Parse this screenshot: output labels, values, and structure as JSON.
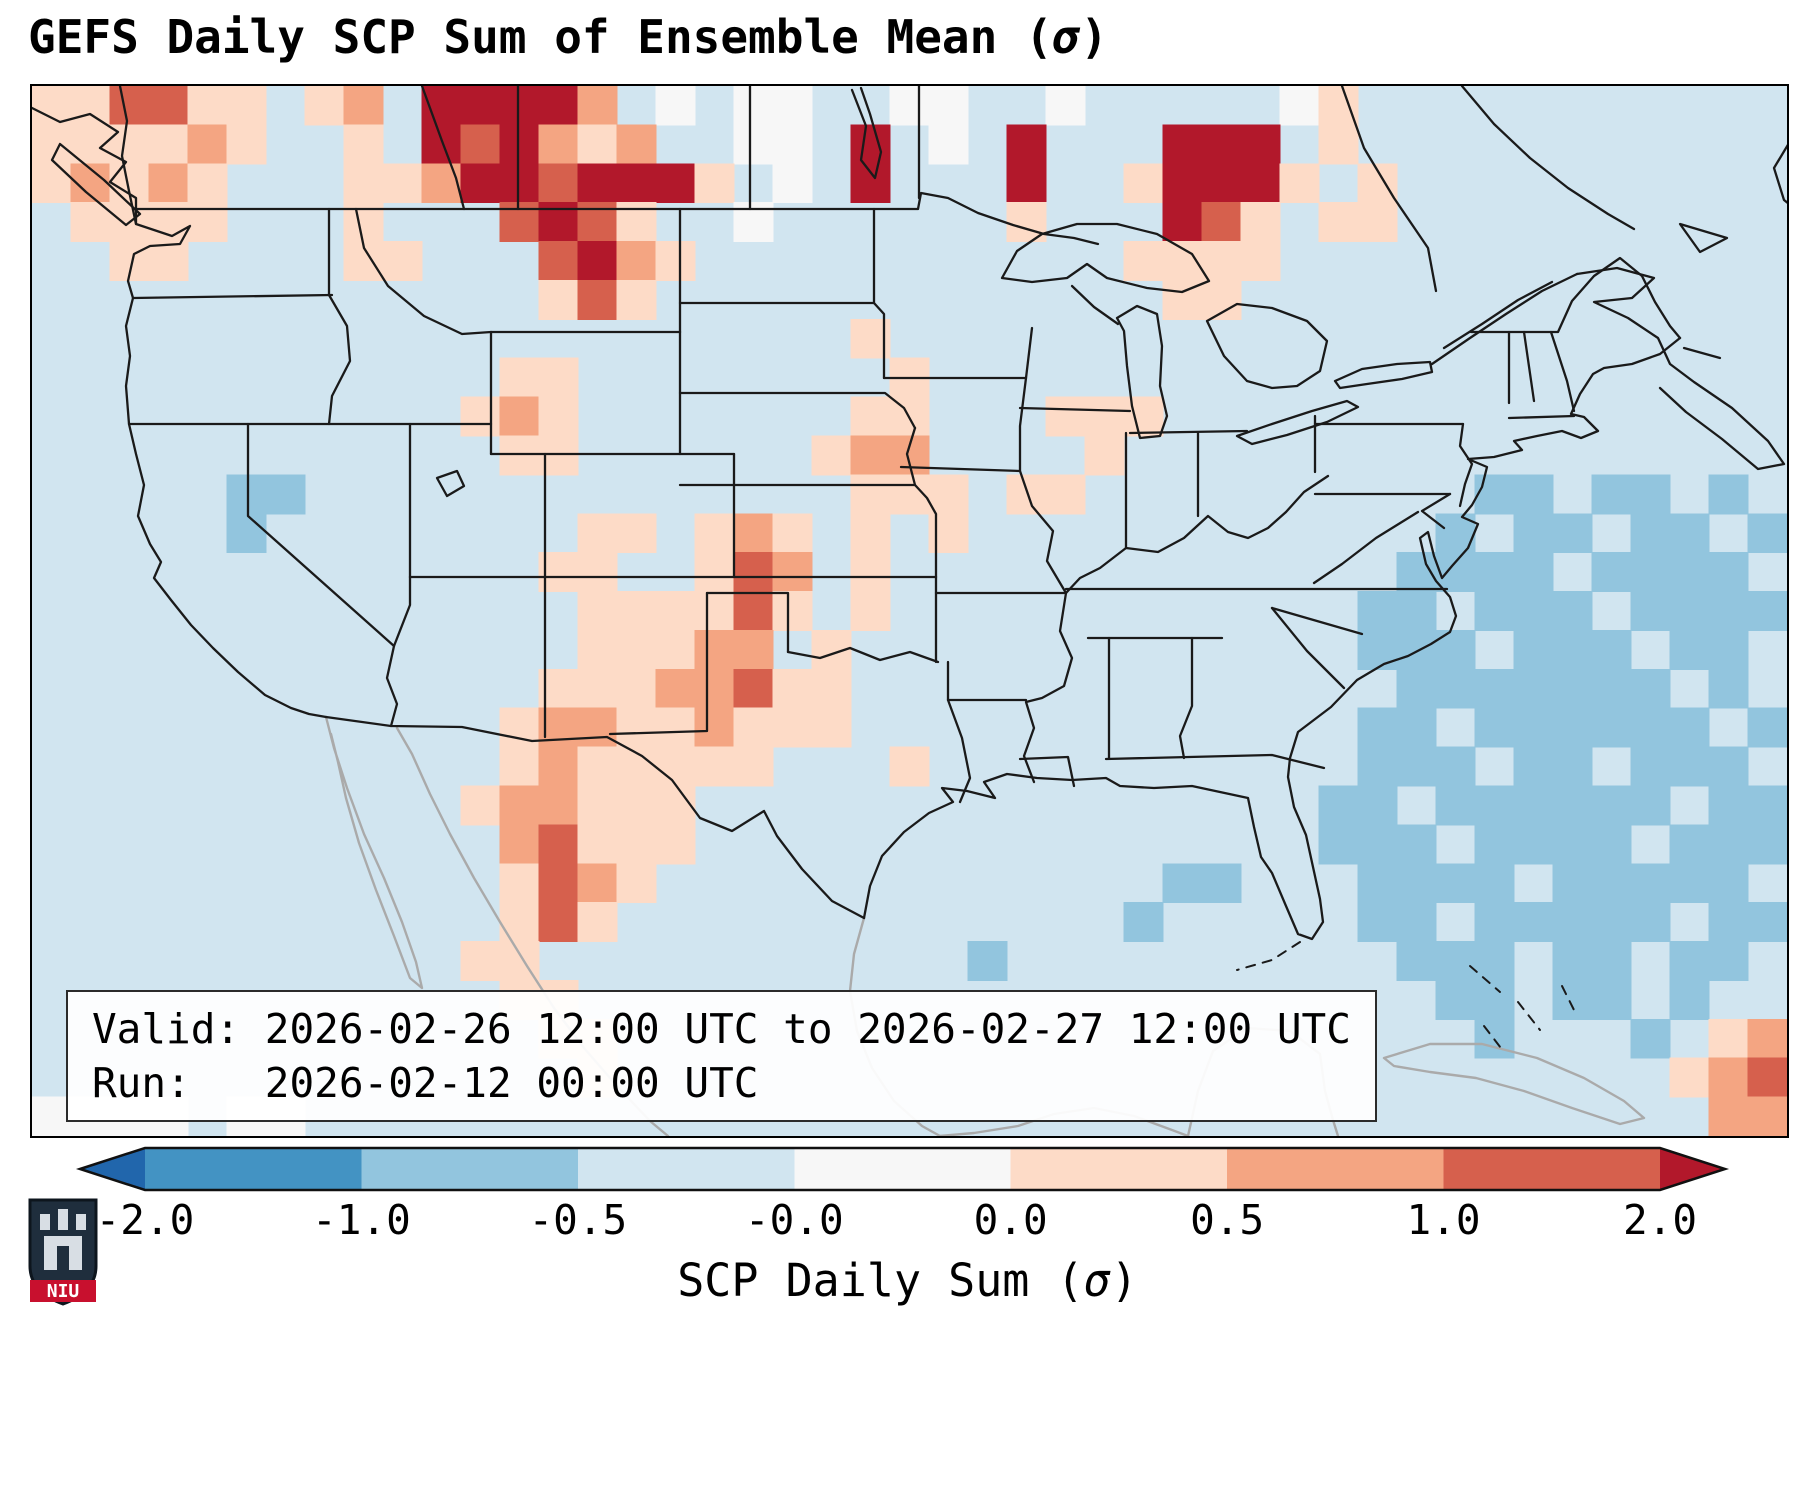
{
  "title": {
    "prefix": "GEFS Daily SCP Sum of Ensemble Mean (",
    "sigma": "σ",
    "suffix": ")"
  },
  "info_box": {
    "line_valid": "Valid: 2026-02-26 12:00 UTC to 2026-02-27 12:00 UTC",
    "line_run": "Run:   2026-02-12 00:00 UTC"
  },
  "colorbar": {
    "label_prefix": "SCP Daily Sum (",
    "label_sigma": "σ",
    "label_suffix": ")",
    "ticks": [
      "-2.0",
      "-1.0",
      "-0.5",
      "-0.0",
      "0.0",
      "0.5",
      "1.0",
      "2.0"
    ],
    "segment_colors": [
      "#4393c3",
      "#92c5de",
      "#d1e5f0",
      "#f7f7f7",
      "#fddbc7",
      "#f4a582",
      "#d6604d"
    ],
    "under_color": "#2166ac",
    "over_color": "#b2182b",
    "outline_color": "#111111"
  },
  "logo": {
    "text": "NIU",
    "shield_color": "#1f2e3d",
    "band_color": "#c8102e"
  },
  "chart_data": {
    "type": "heatmap",
    "title": "GEFS Daily SCP Sum of Ensemble Mean (σ)",
    "valid_window": "2026-02-26 12:00 UTC to 2026-02-27 12:00 UTC",
    "run_time": "2026-02-12 00:00 UTC",
    "colorbar_label": "SCP Daily Sum (σ)",
    "colorbar_boundaries": [
      -2.0,
      -1.0,
      -0.5,
      -0.0,
      0.0,
      0.5,
      1.0,
      2.0
    ],
    "region": "CONUS with southern Canada, Mexico, Gulf of Mexico and western Atlantic",
    "grid": {
      "cols": 45,
      "rows_count": 27,
      "cell_bins": {
        ".": "-0.5 to -0.0 sigma (pale blue background)",
        "b": "-1.0 to -0.5 sigma",
        "B": "-2.0 to -1.0 sigma",
        "w": "-0.0 to 0.0 sigma (near zero, white)",
        "1": "0.0 to 0.5 sigma",
        "2": "0.5 to 1.0 sigma",
        "3": "1.0 to 2.0 sigma",
        "4": "greater than 2.0 sigma"
      },
      "cell_colors": {
        ".": "#d1e5f0",
        "b": "#92c5de",
        "B": "#4393c3",
        "w": "#f7f7f7",
        "1": "#fddbc7",
        "2": "#f4a582",
        "3": "#d6604d",
        "4": "#b2182b"
      },
      "rows": [
        [
          "11331",
          "1.12.",
          "44442",
          ".w.ww",
          "..ww.",
          ".w...",
          "..w1.",
          ".....",
          "....."
        ],
        [
          "11112",
          "1..1.",
          "43421",
          "2..ww",
          ".4.w.",
          "4...4",
          "44.1.",
          ".....",
          "....."
        ],
        [
          "12121",
          "...11",
          "24434",
          "441.w",
          ".4...",
          "4..14",
          "441.1",
          ".....",
          "....."
        ],
        [
          ".1111",
          "...1.",
          "..343",
          "1..w.",
          ".....",
          "1...4",
          "31.11",
          ".....",
          "....."
        ],
        [
          "..11.",
          "...11",
          "...34",
          "21...",
          ".....",
          "...11",
          "11...",
          ".....",
          "....."
        ],
        [
          ".....",
          ".....",
          "...13",
          "1....",
          ".....",
          "....1",
          "1....",
          ".....",
          "....."
        ],
        [
          ".....",
          ".....",
          ".....",
          ".....",
          ".1...",
          ".....",
          ".....",
          ".....",
          "....."
        ],
        [
          ".....",
          ".....",
          "..11.",
          ".....",
          "..1..",
          ".....",
          ".....",
          ".....",
          "....."
        ],
        [
          ".....",
          ".....",
          ".121.",
          ".....",
          ".11..",
          ".111.",
          ".....",
          ".....",
          "....."
        ],
        [
          ".....",
          ".....",
          "..11.",
          ".....",
          "122..",
          "..1..",
          ".....",
          ".....",
          "....."
        ],
        [
          ".....",
          "bb...",
          ".....",
          ".....",
          ".111.",
          "11...",
          ".....",
          "..bb.",
          "bb.b."
        ],
        [
          ".....",
          "b....",
          "....1",
          "1.121",
          ".1.1.",
          ".....",
          ".....",
          ".b.bb",
          ".bb.b"
        ],
        [
          ".....",
          ".....",
          "...11",
          "..132",
          ".1...",
          ".....",
          ".....",
          "bbbb.",
          "bbbb."
        ],
        [
          ".....",
          ".....",
          "....1",
          "11131",
          ".1...",
          ".....",
          "....b",
          "b.bbb",
          ".bbbb"
        ],
        [
          ".....",
          ".....",
          "....1",
          "1122.",
          "1....",
          ".....",
          "....b",
          "bb.bb",
          "b.bb."
        ],
        [
          ".....",
          ".....",
          "...11",
          "12231",
          "1....",
          ".....",
          ".....",
          "bbbbb",
          "bb.b."
        ],
        [
          ".....",
          ".....",
          "..122",
          "11211",
          "1....",
          ".....",
          "....b",
          "b.bbb",
          "bbb.b"
        ],
        [
          ".....",
          ".....",
          "..121",
          "1111.",
          "..1..",
          ".....",
          "....b",
          "bb.bb",
          ".bbb."
        ],
        [
          ".....",
          ".....",
          ".1221",
          "11...",
          ".....",
          ".....",
          "...bb",
          ".bbbb",
          "bb.bb"
        ],
        [
          ".....",
          ".....",
          "..231",
          "11...",
          ".....",
          ".....",
          "...bb",
          "b.bbb",
          "b.bbb"
        ],
        [
          ".....",
          ".....",
          "..132",
          "1....",
          ".....",
          "....b",
          "b...b",
          "bbb.b",
          "bbbb."
        ],
        [
          ".....",
          ".....",
          "..131",
          ".....",
          ".....",
          "...b.",
          "....b",
          "b.bbb",
          "bb.bb"
        ],
        [
          ".....",
          ".....",
          ".11..",
          ".....",
          "....b",
          ".....",
          ".....",
          "bbb.b",
          "b.bb."
        ],
        [
          ".....",
          ".....",
          "..11.",
          ".....",
          ".....",
          ".....",
          ".....",
          ".bb.b",
          "b.b.."
        ],
        [
          ".....",
          ".....",
          "...11",
          ".....",
          ".....",
          ".....",
          ".....",
          "..b..",
          ".b.12"
        ],
        [
          ".....",
          ".....",
          "....1",
          ".....",
          ".....",
          ".....",
          ".....",
          ".....",
          "..123"
        ],
        [
          "wwww.",
          "ww...",
          ".....",
          ".....",
          ".....",
          ".....",
          ".....",
          ".....",
          "...22"
        ]
      ]
    }
  },
  "map": {
    "stroke_us": "#1a1a1a",
    "stroke_intl": "#aaaaaa",
    "black_paths": [
      "M88,0 L95,35 L90,70 L97,105 L104,138 L140,150 L158,140 L148,158 L118,160 L102,168 L96,195 L101,212 L94,240 L98,270 L94,300 L97,338 L104,368 L112,399 L106,430 L118,458 L129,476 L122,492 L139,514 L159,539 L181,562 L206,586 L233,609 L259,622 L277,628 L294,631",
      "M104,123 L886,123 L889,107 L916,112 L946,127 L981,139 L1012,148 L1042,152 L1066,158",
      "M0,22 L28,36 L58,28 L86,46 L68,62 L94,76 L78,96 L104,112 L104,138",
      "M28,58 L72,94 L108,128 L94,139 L54,106 L20,74 Z",
      "M390,0 L410,55 L424,92 L432,123",
      "M486,0 L486,123",
      "M718,0 L718,123",
      "M887,0 L887,112",
      "M820,4 L834,40 L829,74 L843,92 L849,66 L838,28 L829,2",
      "M1310,0 L1332,62 L1362,112 L1396,162 L1404,205",
      "M970,192 L985,165 L1010,148 L1045,138 L1085,138 L1125,148 L1160,168 L1177,195 L1150,206 L1115,202 L1075,192 L1055,178 L1035,192 L1000,196 Z",
      "M1105,220 L1125,228 L1130,260 L1128,300 L1135,330 L1128,350 L1108,352 L1100,320 L1095,280 L1092,245 L1085,232 Z",
      "M1175,235 L1205,218 L1240,222 L1275,235 L1295,255 L1288,285 L1265,300 L1240,302 L1215,295 L1192,270 Z",
      "M1205,350 L1240,338 L1280,325 L1315,315 L1326,321 L1295,336 L1255,349 L1220,358 Z",
      "M1303,295 L1330,283 L1365,278 L1398,276 L1400,286 L1370,293 L1335,298 L1308,302 Z",
      "M1040,200 L1062,221 L1086,238",
      "M1400,278 L1438,252 L1474,228 L1510,205 L1545,188",
      "M1412,262 L1450,238 L1486,214 L1520,196",
      "M1430,0 L1462,38 L1498,72 L1536,102 L1576,128 L1602,143",
      "M1545,188 L1585,182 L1622,192 L1600,212 L1562,216 L1596,232 L1626,252 L1638,278 L1662,296 L1700,322 L1736,355 L1752,378 L1726,383 L1690,353 L1654,326 L1628,302",
      "M1652,262 L1688,272",
      "M1648,138 L1695,152 L1668,166 Z",
      "M1760,52 L1795,92 L1782,138 L1752,114 L1742,82 Z",
      "M1439,246 L1526,246 L1540,215 L1562,190 L1588,172 L1610,190 L1623,216 L1638,240 L1648,252",
      "M1648,252 L1628,268 L1600,278 L1572,282 L1561,288 L1548,308 L1539,328 L1552,331 L1566,345 L1549,352 L1530,345 L1505,350 L1482,355 L1490,364 L1462,371 L1436,373 L1455,381 L1450,401 L1440,419 L1430,431 L1446,438 L1436,462 L1420,480 L1410,492 L1402,470 L1396,446 L1388,452 L1394,478 L1404,495 L1418,511 L1424,530 L1418,546 L1399,558 L1376,570 L1352,578 L1325,594 L1299,621 L1266,646 L1258,672 L1256,691 L1262,721 L1274,749 L1281,781 L1288,813 L1291,836 L1280,853 L1266,848 L1254,820 L1240,787 L1229,771 L1222,741 L1216,712 L1188,706 L1160,700 L1122,702 L1088,700 L1074,692 L1040,694 L1005,692 L975,688 L952,696 L963,712 L935,705 L910,702 L921,716 L897,727 L872,746 L850,770 L838,800 L832,832",
      "M832,832 L800,815 L770,783 L745,750 L732,725 L700,745 L668,732 L640,694 L610,670 L575,651 L500,655 L430,641 L359,640 L294,631",
      "M101,212 L300,209",
      "M297,123 L297,209",
      "M297,209 L315,240 L318,275 L300,310 L297,338",
      "M97,338 L459,338",
      "M216,338 L216,430 L362,560 L355,592 L365,618 L359,640",
      "M324,123 L332,162 L356,200 L392,230 L430,248 L459,246",
      "M459,246 L648,246",
      "M648,123 L648,246",
      "M459,246 L459,368",
      "M648,246 L648,368",
      "M459,368 L702,368",
      "M378,338 L378,491",
      "M513,368 L513,491",
      "M378,491 L904,491",
      "M378,491 L378,519 L362,560",
      "M513,491 L513,651",
      "M702,368 L702,491",
      "M675,507 L675,645 L578,648",
      "M675,507 L756,507 L756,566",
      "M756,566 L788,572 L818,562 L848,574 L878,566 L906,576",
      "M904,491 L904,576",
      "M916,576 L916,614 L930,652 L938,692 L928,716",
      "M916,614 L994,614",
      "M904,507 L1034,507",
      "M648,217 L842,217",
      "M648,307 L853,307 L872,322 L883,342",
      "M648,399 L883,399",
      "M842,123 L842,217 L852,228 L852,292",
      "M852,292 L994,292",
      "M883,342 L875,368 L883,399 L895,412 L904,428 L904,491",
      "M869,381 L988,385",
      "M1000,242 L994,292 L988,340 L988,385 L1000,420 L1021,445 L1015,475 L1034,507 L1028,545 L1040,572 L1032,600 L1010,612 L994,616 L1002,642 L992,670 L1002,696",
      "M988,322 L1098,325",
      "M1094,347 L1094,462",
      "M1296,390 L1272,406 L1254,426 L1236,442 L1216,452 L1196,446 L1176,430 L1152,452 L1126,466 L1094,462 L1068,482 L1048,492 L1034,507",
      "M1166,347 L1166,430",
      "M1098,347 L1215,345",
      "M1283,330 L1283,386",
      "M1283,338 L1431,338",
      "M1283,408 L1418,408",
      "M1034,503 L1415,503",
      "M1056,552 L1190,552",
      "M1077,552 L1077,672",
      "M1160,552 L1160,620 L1148,650 L1152,672",
      "M1074,673 L1240,669 L1292,682",
      "M1312,602 L1275,565 L1240,522",
      "M1240,522 L1330,548",
      "M988,673 L1036,671 L1042,700",
      "M1431,338 L1428,360 L1440,378 L1433,398 L1428,420",
      "M1418,408 L1390,425 L1412,442",
      "M1386,426 L1344,452 L1310,478 L1282,497",
      "M1477,246 L1477,317",
      "M1492,246 L1502,315",
      "M1477,332 L1542,330",
      "M1519,246 L1535,295 L1542,325",
      "M405,392 L425,385 L432,400 L415,410 Z"
    ],
    "grey_paths": [
      "M365,642 L380,668 L398,708 L418,748 L442,792 L468,836 L495,880 L522,922 L552,962 L585,1000 L618,1035 L636,1050",
      "M294,631 L302,662 L315,702 L332,748 L352,792 L370,836 L384,876 L390,902 L378,892 L362,850 L344,804 L327,757 L314,712 L306,676 L299,648",
      "M832,832 L822,868 L818,905 L825,945 L840,982 L862,1015 L890,1040 L908,1050",
      "M908,1050 L942,1047 L986,1040 L1022,1028 L1062,1022 L1102,1030 L1140,1044 L1156,1050",
      "M1156,1050 L1166,1005 L1181,965 L1215,942 L1258,945 L1288,968 L1293,1005 L1301,1034 L1306,1050",
      "M1352,972 L1398,958 L1450,958 L1505,972 L1552,992 L1592,1015 L1612,1032 L1588,1038 L1540,1022 L1492,1005 L1444,992 L1398,986 L1362,980 Z"
    ],
    "dashed_paths": [
      "M1268,856 L1240,874 L1205,884",
      "M1438,880 L1468,906",
      "M1486,916 L1508,944",
      "M1452,940 L1472,966",
      "M1530,900 L1545,930"
    ]
  }
}
